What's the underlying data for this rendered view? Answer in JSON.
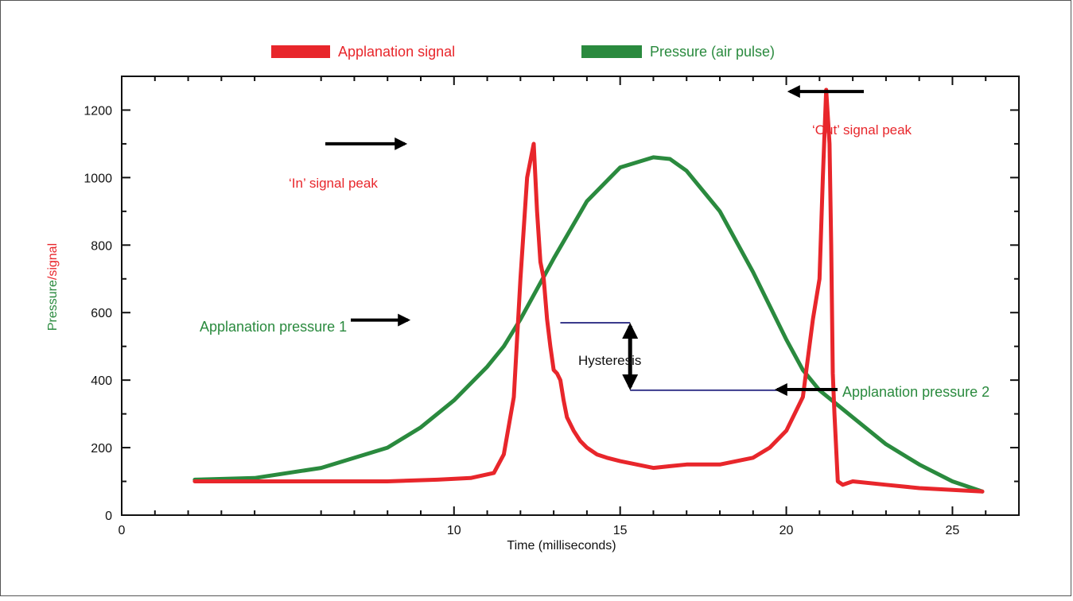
{
  "chart_data": {
    "type": "line",
    "title": "",
    "xlabel": "Time (milliseconds)",
    "ylabel_parts": [
      "Pressure",
      "/signal"
    ],
    "xlim": [
      0,
      27
    ],
    "ylim": [
      0,
      1300
    ],
    "xticks": [
      0,
      10,
      15,
      20,
      25
    ],
    "yticks": [
      0,
      200,
      400,
      600,
      800,
      1000,
      1200
    ],
    "legend_position": "top",
    "series": [
      {
        "name": "Applanation signal",
        "color": "#e8262b",
        "x": [
          2.2,
          4,
          6,
          8,
          9.5,
          10.5,
          11.2,
          11.5,
          11.8,
          12.0,
          12.2,
          12.4,
          12.5,
          12.6,
          12.7,
          12.8,
          12.9,
          13.0,
          13.1,
          13.2,
          13.3,
          13.4,
          13.6,
          13.8,
          14.0,
          14.3,
          14.6,
          15.0,
          15.5,
          16,
          16.5,
          17,
          17.5,
          18,
          18.5,
          19,
          19.5,
          20.0,
          20.5,
          20.8,
          21.0,
          21.1,
          21.2,
          21.3,
          21.35,
          21.4,
          21.45,
          21.55,
          21.7,
          22,
          23,
          24,
          25,
          25.9
        ],
        "values": [
          100,
          100,
          100,
          100,
          105,
          110,
          125,
          180,
          350,
          700,
          1000,
          1100,
          900,
          750,
          700,
          580,
          500,
          430,
          420,
          400,
          340,
          290,
          250,
          220,
          200,
          180,
          170,
          160,
          150,
          140,
          145,
          150,
          150,
          150,
          160,
          170,
          200,
          250,
          350,
          580,
          700,
          1000,
          1260,
          1100,
          800,
          420,
          300,
          100,
          90,
          100,
          90,
          80,
          75,
          70
        ]
      },
      {
        "name": "Pressure (air pulse)",
        "color": "#2a8a3e",
        "x": [
          2.2,
          4,
          6,
          8,
          9,
          10,
          11,
          11.5,
          12,
          13,
          14,
          15,
          16,
          16.5,
          17,
          18,
          19,
          20,
          20.5,
          21,
          22,
          23,
          24,
          25,
          25.9
        ],
        "values": [
          105,
          110,
          140,
          200,
          260,
          340,
          440,
          500,
          580,
          760,
          930,
          1030,
          1060,
          1055,
          1020,
          900,
          720,
          520,
          430,
          370,
          290,
          210,
          150,
          100,
          70
        ]
      }
    ],
    "annotations": {
      "in_peak": "‘In’ signal peak",
      "out_peak": "‘Out’ signal peak",
      "applanation_1": "Applanation pressure 1",
      "applanation_2": "Applanation pressure 2",
      "hysteresis": "Hysteresis"
    },
    "applanation_levels": {
      "p1": 570,
      "p2": 370,
      "p1_x": 13.2,
      "p2_x": 21.2,
      "hysteresis_x": 15.3
    }
  }
}
